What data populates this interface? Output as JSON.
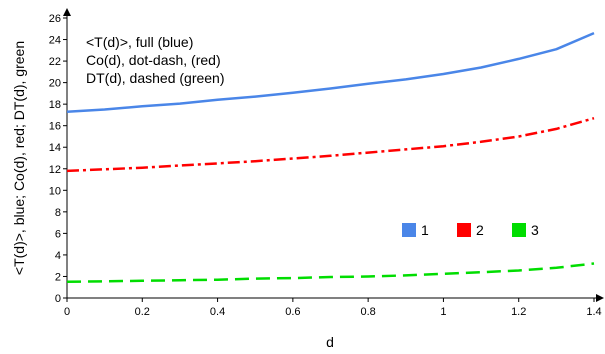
{
  "chart_data": {
    "type": "line",
    "xlabel": "d",
    "ylabel": "<T(d)>, blue; Co(d), red; DT(d), green",
    "xlim": [
      0,
      1.4
    ],
    "ylim": [
      0,
      26
    ],
    "x_ticks": [
      "0",
      "0.2",
      "0.4",
      "0.6",
      "0.8",
      "1",
      "1.2",
      "1.4"
    ],
    "y_ticks": [
      "0",
      "2",
      "4",
      "6",
      "8",
      "10",
      "12",
      "14",
      "16",
      "18",
      "20",
      "22",
      "24",
      "26"
    ],
    "grid": false,
    "annotations": [
      "<T(d)>, full (blue)",
      "Co(d), dot-dash, (red)",
      "DT(d), dashed (green)"
    ],
    "legend": {
      "placement": "lower-right",
      "entries": [
        {
          "label": "1",
          "color": "#4a86e8"
        },
        {
          "label": "2",
          "color": "#ff0000"
        },
        {
          "label": "3",
          "color": "#00dd00"
        }
      ]
    },
    "series": [
      {
        "color": "#4a86e8",
        "style": "solid",
        "x": [
          0,
          0.1,
          0.2,
          0.3,
          0.4,
          0.5,
          0.6,
          0.7,
          0.8,
          0.9,
          1.0,
          1.1,
          1.2,
          1.3,
          1.4
        ],
        "values": [
          17.3,
          17.5,
          17.8,
          18.05,
          18.4,
          18.7,
          19.05,
          19.45,
          19.9,
          20.3,
          20.8,
          21.4,
          22.2,
          23.1,
          24.6
        ]
      },
      {
        "color": "#ff0000",
        "style": "dot-dash",
        "x": [
          0,
          0.1,
          0.2,
          0.3,
          0.4,
          0.5,
          0.6,
          0.7,
          0.8,
          0.9,
          1.0,
          1.1,
          1.2,
          1.3,
          1.4
        ],
        "values": [
          11.8,
          11.95,
          12.1,
          12.3,
          12.5,
          12.7,
          12.95,
          13.2,
          13.5,
          13.8,
          14.1,
          14.5,
          15.0,
          15.7,
          16.7
        ]
      },
      {
        "color": "#00dd00",
        "style": "dashed",
        "x": [
          0,
          0.1,
          0.2,
          0.3,
          0.4,
          0.5,
          0.6,
          0.7,
          0.8,
          0.9,
          1.0,
          1.1,
          1.2,
          1.3,
          1.4
        ],
        "values": [
          1.5,
          1.55,
          1.6,
          1.65,
          1.7,
          1.8,
          1.85,
          1.95,
          2.0,
          2.1,
          2.25,
          2.4,
          2.55,
          2.8,
          3.2
        ]
      }
    ]
  }
}
